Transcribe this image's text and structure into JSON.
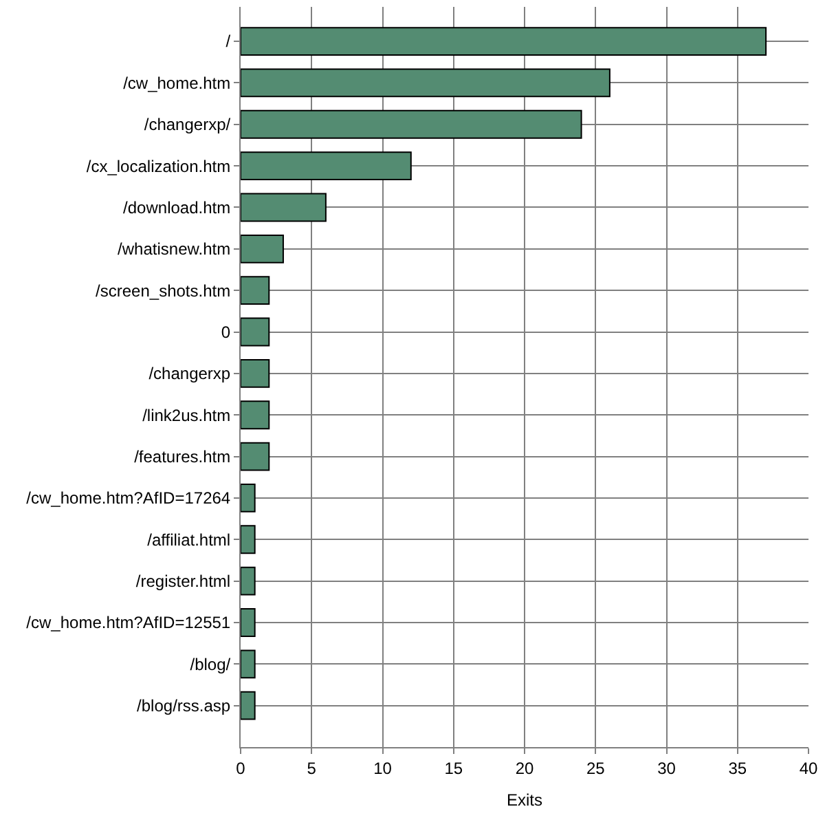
{
  "chart_data": {
    "type": "bar",
    "orientation": "horizontal",
    "xlabel": "Exits",
    "categories": [
      "/",
      "/cw_home.htm",
      "/changerxp/",
      "/cx_localization.htm",
      "/download.htm",
      "/whatisnew.htm",
      "/screen_shots.htm",
      "0",
      "/changerxp",
      "/link2us.htm",
      "/features.htm",
      "/cw_home.htm?AfID=17264",
      "/affiliat.html",
      "/register.html",
      "/cw_home.htm?AfID=12551",
      "/blog/",
      "/blog/rss.asp"
    ],
    "values": [
      37,
      26,
      24,
      12,
      6,
      3,
      2,
      2,
      2,
      2,
      2,
      1,
      1,
      1,
      1,
      1,
      1
    ],
    "color": "#548c72",
    "xlim": [
      0,
      40
    ],
    "xticks": [
      0,
      5,
      10,
      15,
      20,
      25,
      30,
      35,
      40
    ],
    "grid": true
  }
}
